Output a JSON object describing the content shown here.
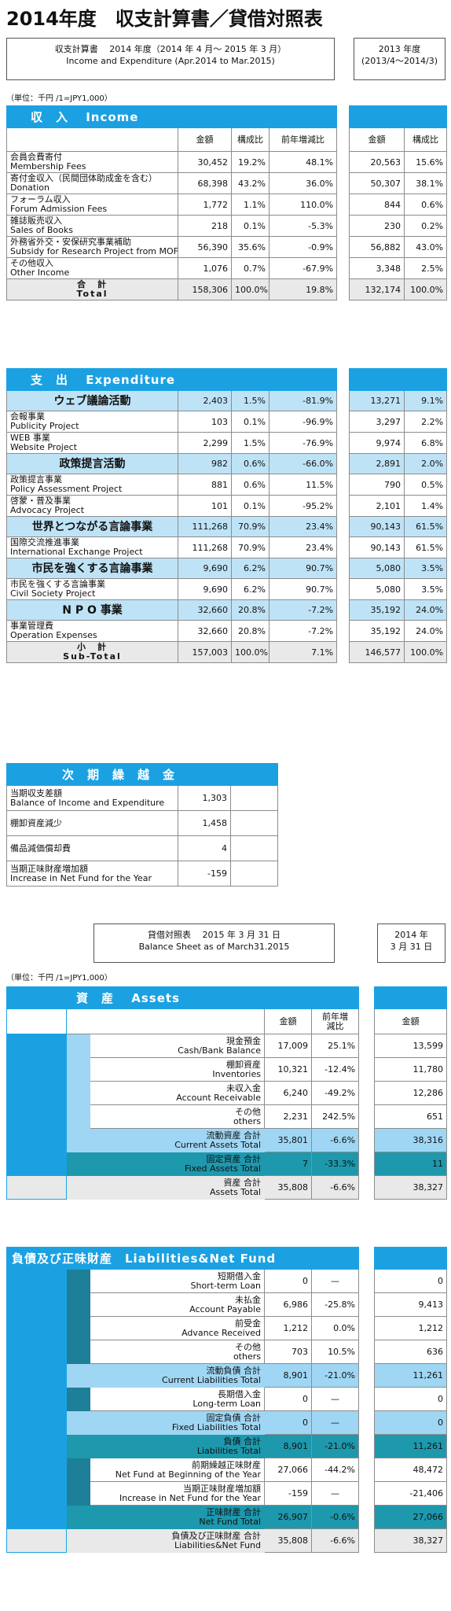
{
  "title": "2014年度　収支計算書／貸借対照表",
  "header": {
    "line1": "収支計算書　 2014 年度（2014 年 4 月～ 2015 年 3 月）",
    "line2": "Income and Expenditure (Apr.2014 to Mar.2015)",
    "prev1": "2013 年度",
    "prev2": "(2013/4～2014/3)"
  },
  "unit": "（単位：千円 /1=JPY1,000）",
  "colheads": {
    "amount": "金額",
    "ratio": "構成比",
    "change": "前年増減比"
  },
  "income": {
    "title": "収　入　 Income",
    "rows": [
      {
        "jp": "会員会費寄付",
        "en": "Membership Fees",
        "a": "30,452",
        "r": "19.2%",
        "c": "48.1%",
        "pa": "20,563",
        "pr": "15.6%"
      },
      {
        "jp": "寄付金収入（民間団体助成金を含む）",
        "en": "Donation",
        "a": "68,398",
        "r": "43.2%",
        "c": "36.0%",
        "pa": "50,307",
        "pr": "38.1%"
      },
      {
        "jp": "フォーラム収入",
        "en": "Forum Admission Fees",
        "a": "1,772",
        "r": "1.1%",
        "c": "110.0%",
        "pa": "844",
        "pr": "0.6%"
      },
      {
        "jp": "雑誌販売収入",
        "en": "Sales of Books",
        "a": "218",
        "r": "0.1%",
        "c": "-5.3%",
        "pa": "230",
        "pr": "0.2%"
      },
      {
        "jp": "外務省外交・安保研究事業補助",
        "en": "Subsidy for Research Project from MOFA",
        "a": "56,390",
        "r": "35.6%",
        "c": "-0.9%",
        "pa": "56,882",
        "pr": "43.0%"
      },
      {
        "jp": "その他収入",
        "en": "Other Income",
        "a": "1,076",
        "r": "0.7%",
        "c": "-67.9%",
        "pa": "3,348",
        "pr": "2.5%"
      }
    ],
    "total": {
      "jp": "合　計",
      "en": "Total",
      "a": "158,306",
      "r": "100.0%",
      "c": "19.8%",
      "pa": "132,174",
      "pr": "100.0%"
    }
  },
  "expenditure": {
    "title": "支　出　 Expenditure",
    "rows": [
      {
        "type": "cat",
        "jp": "ウェブ議論活動",
        "a": "2,403",
        "r": "1.5%",
        "c": "-81.9%",
        "pa": "13,271",
        "pr": "9.1%"
      },
      {
        "jp": "会報事業",
        "en": "Publicity Project",
        "a": "103",
        "r": "0.1%",
        "c": "-96.9%",
        "pa": "3,297",
        "pr": "2.2%"
      },
      {
        "jp": "WEB 事業",
        "en": "Website Project",
        "a": "2,299",
        "r": "1.5%",
        "c": "-76.9%",
        "pa": "9,974",
        "pr": "6.8%"
      },
      {
        "type": "cat",
        "jp": "政策提言活動",
        "a": "982",
        "r": "0.6%",
        "c": "-66.0%",
        "pa": "2,891",
        "pr": "2.0%"
      },
      {
        "jp": "政策提言事業",
        "en": "Policy Assessment Project",
        "a": "881",
        "r": "0.6%",
        "c": "11.5%",
        "pa": "790",
        "pr": "0.5%"
      },
      {
        "jp": "啓蒙・普及事業",
        "en": "Advocacy Project",
        "a": "101",
        "r": "0.1%",
        "c": "-95.2%",
        "pa": "2,101",
        "pr": "1.4%"
      },
      {
        "type": "cat",
        "jp": "世界とつながる言論事業",
        "a": "111,268",
        "r": "70.9%",
        "c": "23.4%",
        "pa": "90,143",
        "pr": "61.5%"
      },
      {
        "jp": "国際交流推進事業",
        "en": "International Exchange Project",
        "a": "111,268",
        "r": "70.9%",
        "c": "23.4%",
        "pa": "90,143",
        "pr": "61.5%"
      },
      {
        "type": "cat",
        "jp": "市民を強くする言論事業",
        "a": "9,690",
        "r": "6.2%",
        "c": "90.7%",
        "pa": "5,080",
        "pr": "3.5%"
      },
      {
        "jp": "市民を強くする言論事業",
        "en": "Civil Society Project",
        "a": "9,690",
        "r": "6.2%",
        "c": "90.7%",
        "pa": "5,080",
        "pr": "3.5%"
      },
      {
        "type": "cat",
        "jp": "N P O 事業",
        "a": "32,660",
        "r": "20.8%",
        "c": "-7.2%",
        "pa": "35,192",
        "pr": "24.0%"
      },
      {
        "jp": "事業管理費",
        "en": "Operation Expenses",
        "a": "32,660",
        "r": "20.8%",
        "c": "-7.2%",
        "pa": "35,192",
        "pr": "24.0%"
      }
    ],
    "total": {
      "jp": "小　計",
      "en": "Sub-Total",
      "a": "157,003",
      "r": "100.0%",
      "c": "7.1%",
      "pa": "146,577",
      "pr": "100.0%"
    }
  },
  "carry": {
    "title": "次　期　繰　越　金",
    "rows": [
      {
        "jp": "当期収支差額",
        "en": "Balance of Income and Expenditure",
        "a": "1,303"
      },
      {
        "jp": "棚卸資産減少",
        "en": "",
        "a": "1,458"
      },
      {
        "jp": "備品減価償却費",
        "en": "",
        "a": "4"
      },
      {
        "jp": "当期正味財産増加額",
        "en": "Increase in Net Fund for the Year",
        "a": "-159"
      }
    ]
  },
  "bs_header": {
    "line1": "貸借対照表　 2015 年 3 月 31 日",
    "line2": "Balance Sheet as of March31.2015",
    "prev1": "2014 年",
    "prev2": "3 月 31 日"
  },
  "assets": {
    "title": "資　産　 Assets",
    "rows": [
      {
        "jp": "現金預金",
        "en": "Cash/Bank Balance",
        "a": "17,009",
        "c": "25.1%",
        "pa": "13,599",
        "style": "plain"
      },
      {
        "jp": "棚卸資産",
        "en": "Inventories",
        "a": "10,321",
        "c": "-12.4%",
        "pa": "11,780",
        "style": "plain"
      },
      {
        "jp": "未収入金",
        "en": "Account Receivable",
        "a": "6,240",
        "c": "-49.2%",
        "pa": "12,286",
        "style": "plain"
      },
      {
        "jp": "その他",
        "en": "others",
        "a": "2,231",
        "c": "242.5%",
        "pa": "651",
        "style": "plain"
      },
      {
        "jp": "流動資産 合計",
        "en": "Current Assets Total",
        "a": "35,801",
        "c": "-6.6%",
        "pa": "38,316",
        "style": "light"
      },
      {
        "jp": "固定資産 合計",
        "en": "Fixed Assets Total",
        "a": "7",
        "c": "-33.3%",
        "pa": "11",
        "style": "teal"
      },
      {
        "jp": "資産 合計",
        "en": "Assets Total",
        "a": "35,808",
        "c": "-6.6%",
        "pa": "38,327",
        "style": "gray"
      }
    ]
  },
  "liabilities": {
    "title": "負債及び正味財産　Liabilities&Net Fund",
    "rows": [
      {
        "jp": "短期借入金",
        "en": "Short-term Loan",
        "a": "0",
        "c": "—",
        "pa": "0",
        "style": "plain"
      },
      {
        "jp": "未払金",
        "en": "Account Payable",
        "a": "6,986",
        "c": "-25.8%",
        "pa": "9,413",
        "style": "plain"
      },
      {
        "jp": "前受金",
        "en": "Advance Received",
        "a": "1,212",
        "c": "0.0%",
        "pa": "1,212",
        "style": "plain"
      },
      {
        "jp": "その他",
        "en": "others",
        "a": "703",
        "c": "10.5%",
        "pa": "636",
        "style": "plain"
      },
      {
        "jp": "流動負債 合計",
        "en": "Current Liabilities Total",
        "a": "8,901",
        "c": "-21.0%",
        "pa": "11,261",
        "style": "light"
      },
      {
        "jp": "長期借入金",
        "en": "Long-term Loan",
        "a": "0",
        "c": "—",
        "pa": "0",
        "style": "plain"
      },
      {
        "jp": "固定負債 合計",
        "en": "Fixed Liabilities Total",
        "a": "0",
        "c": "—",
        "pa": "0",
        "style": "light"
      },
      {
        "jp": "負債 合計",
        "en": "Liabilities Total",
        "a": "8,901",
        "c": "-21.0%",
        "pa": "11,261",
        "style": "teal"
      },
      {
        "jp": "前期繰越正味財産",
        "en": "Net Fund at Beginning of the Year",
        "a": "27,066",
        "c": "-44.2%",
        "pa": "48,472",
        "style": "plain"
      },
      {
        "jp": "当期正味財産増加額",
        "en": "Increase in Net Fund for the Year",
        "a": "-159",
        "c": "—",
        "pa": "-21,406",
        "style": "plain"
      },
      {
        "jp": "正味財産 合計",
        "en": "Net Fund Total",
        "a": "26,907",
        "c": "-0.6%",
        "pa": "27,066",
        "style": "teal"
      },
      {
        "jp": "負債及び正味財産 合計",
        "en": "Liabilities&Net Fund",
        "a": "35,808",
        "c": "-6.6%",
        "pa": "38,327",
        "style": "gray"
      }
    ]
  },
  "colors": {
    "blue": "#1ba1e2",
    "light": "#bfe3f6",
    "teal": "#1d98ad",
    "gray": "#e9e9e9"
  }
}
